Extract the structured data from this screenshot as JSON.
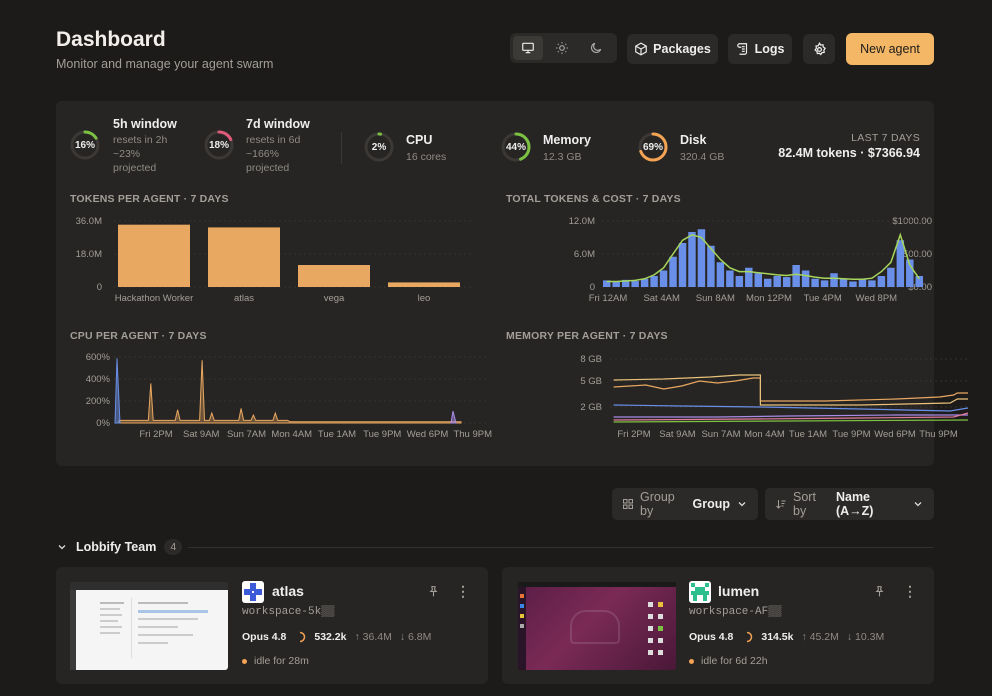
{
  "header": {
    "title": "Dashboard",
    "subtitle": "Monitor and manage your agent swarm",
    "packages_label": "Packages",
    "logs_label": "Logs",
    "new_agent_label": "New agent"
  },
  "stats": {
    "five_h": {
      "pct_label": "16%",
      "pct": 0.16,
      "title": "5h window",
      "line1": "resets in 2h",
      "line2": "~23%",
      "line3": "projected",
      "color": "#7cc242"
    },
    "seven_d": {
      "pct_label": "18%",
      "pct": 0.18,
      "title": "7d window",
      "line1": "resets in 6d",
      "line2": "~166%",
      "line3": "projected",
      "color": "#e05a7a"
    },
    "cpu": {
      "pct_label": "2%",
      "pct": 0.02,
      "title": "CPU",
      "sub": "16 cores",
      "color": "#7cc242"
    },
    "memory": {
      "pct_label": "44%",
      "pct": 0.44,
      "title": "Memory",
      "sub": "12.3 GB",
      "color": "#7cc242"
    },
    "disk": {
      "pct_label": "69%",
      "pct": 0.69,
      "title": "Disk",
      "sub": "320.4 GB",
      "color": "#f3a354"
    },
    "last7": {
      "label": "LAST 7 DAYS",
      "value": "82.4M tokens · $7366.94"
    }
  },
  "chart_data": [
    {
      "type": "bar",
      "title": "TOKENS PER AGENT · 7 DAYS",
      "categories": [
        "Hackathon Worker",
        "atlas",
        "vega",
        "leo"
      ],
      "values": [
        34.0,
        32.5,
        12.0,
        2.5
      ],
      "ylim": [
        0,
        36
      ],
      "yticks": [
        "36.0M",
        "18.0M",
        "0"
      ],
      "color": "#e9a861"
    },
    {
      "type": "bar",
      "title": "TOTAL TOKENS & COST · 7 DAYS",
      "x_ticks": [
        "Fri 12AM",
        "Sat 4AM",
        "Sun 8AM",
        "Mon 12PM",
        "Tue 4PM",
        "Wed 8PM"
      ],
      "yticks_left": [
        "12.0M",
        "6.0M",
        "0"
      ],
      "yticks_right": [
        "$1000.00",
        "$500.00",
        "$0.00"
      ],
      "ylim": [
        0,
        12
      ],
      "series": [
        {
          "values": [
            1.2,
            1.0,
            1.3,
            1.1,
            1.5,
            2.0,
            3.0,
            5.5,
            8.0,
            10.0,
            10.5,
            7.5,
            4.5,
            3.0,
            2.0,
            3.5,
            2.5,
            1.5,
            2.0,
            1.8,
            4.0,
            3.0,
            1.5,
            1.2,
            2.5,
            1.5,
            1.0,
            1.5,
            1.2,
            2.0,
            3.5,
            8.5,
            5.0,
            2.0
          ],
          "color": "#6a8fe8"
        },
        {
          "values": [
            1.0,
            1.0,
            1.1,
            1.2,
            1.5,
            2.2,
            3.5,
            6.0,
            8.5,
            9.5,
            9.0,
            7.0,
            5.0,
            3.5,
            2.8,
            2.8,
            2.6,
            2.4,
            2.2,
            2.1,
            2.3,
            2.1,
            1.8,
            1.6,
            1.6,
            1.5,
            1.4,
            1.4,
            1.6,
            2.8,
            4.5,
            9.5,
            4.0,
            1.5
          ],
          "color": "#a6d65c"
        }
      ]
    },
    {
      "type": "area",
      "title": "CPU PER AGENT · 7 DAYS",
      "x_ticks": [
        "Fri 2PM",
        "Sat 9AM",
        "Sun 7AM",
        "Mon 4AM",
        "Tue 1AM",
        "Tue 9PM",
        "Wed 6PM",
        "Thu 9PM"
      ],
      "yticks": [
        "600%",
        "400%",
        "200%",
        "0%"
      ],
      "ylim": [
        0,
        600
      ]
    },
    {
      "type": "line",
      "title": "MEMORY PER AGENT · 7 DAYS",
      "x_ticks": [
        "Fri 2PM",
        "Sat 9AM",
        "Sun 7AM",
        "Mon 4AM",
        "Tue 1AM",
        "Tue 9PM",
        "Wed 6PM",
        "Thu 9PM"
      ],
      "yticks": [
        "8 GB",
        "5 GB",
        "2 GB"
      ],
      "ylim": [
        0,
        8
      ]
    }
  ],
  "controls": {
    "group_by_label": "Group by",
    "group_by_value": "Group",
    "sort_by_label": "Sort by",
    "sort_by_value": "Name (A→Z)"
  },
  "team": {
    "name": "Lobbify Team",
    "count": "4"
  },
  "agents": [
    {
      "name": "atlas",
      "workspace": "workspace-5k▒▒",
      "model": "Opus 4.8",
      "tokens": "532.2k",
      "up": "↑ 36.4M",
      "down": "↓ 6.8M",
      "status": "idle for 28m"
    },
    {
      "name": "lumen",
      "workspace": "workspace-AF▒▒",
      "model": "Opus 4.8",
      "tokens": "314.5k",
      "up": "↑ 45.2M",
      "down": "↓ 10.3M",
      "status": "idle for 6d 22h"
    }
  ]
}
